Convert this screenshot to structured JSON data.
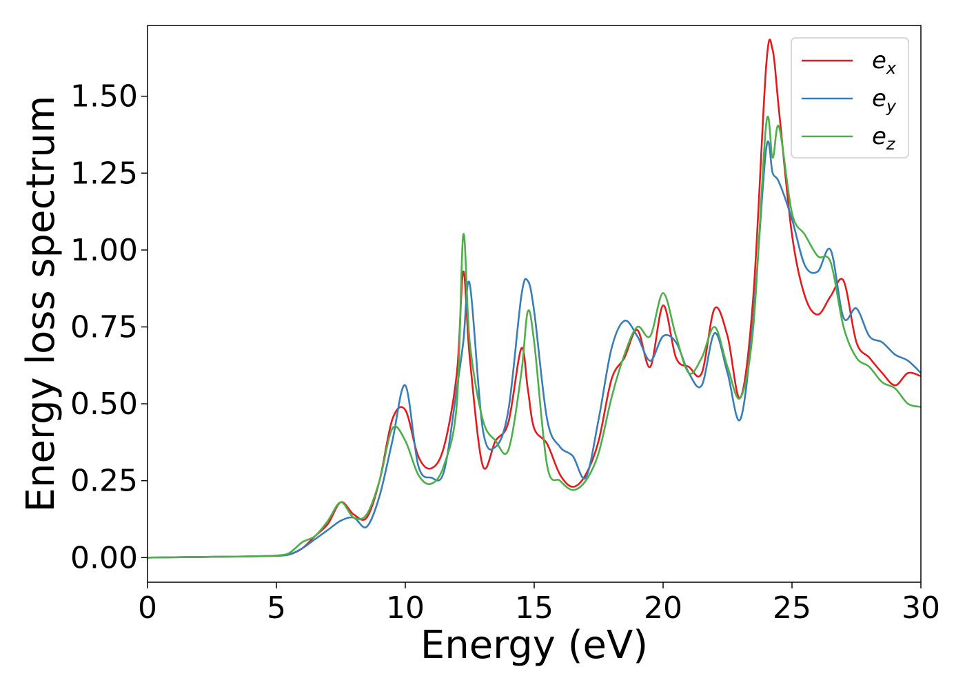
{
  "chart_data": {
    "type": "line",
    "xlabel": "Energy (eV)",
    "ylabel": "Energy loss spectrum",
    "xlim": [
      0,
      30
    ],
    "ylim": [
      -0.08,
      1.73
    ],
    "xticks": [
      "0",
      "5",
      "10",
      "15",
      "20",
      "25",
      "30"
    ],
    "yticks": [
      "0.00",
      "0.25",
      "0.50",
      "0.75",
      "1.00",
      "1.25",
      "1.50"
    ],
    "grid": false,
    "legend_position": "top-right",
    "x": [
      0,
      1,
      2,
      3,
      4,
      5,
      5.5,
      6,
      6.5,
      7,
      7.5,
      8,
      8.5,
      9,
      9.5,
      10,
      10.5,
      11,
      11.5,
      12,
      12.25,
      12.5,
      13,
      13.5,
      14,
      14.5,
      14.75,
      15,
      15.5,
      16,
      16.5,
      17,
      17.5,
      18,
      18.5,
      19,
      19.5,
      20,
      20.5,
      21,
      21.5,
      22,
      22.5,
      23,
      23.5,
      24,
      24.25,
      24.5,
      25,
      25.5,
      26,
      26.5,
      27,
      27.5,
      28,
      28.5,
      29,
      29.5,
      30
    ],
    "series": [
      {
        "name": "e",
        "subscript": "x",
        "color": "#e41a1c",
        "values": [
          0,
          0.001,
          0.002,
          0.003,
          0.004,
          0.006,
          0.01,
          0.03,
          0.07,
          0.11,
          0.18,
          0.14,
          0.13,
          0.25,
          0.45,
          0.48,
          0.33,
          0.29,
          0.36,
          0.6,
          0.93,
          0.65,
          0.3,
          0.38,
          0.44,
          0.68,
          0.55,
          0.42,
          0.37,
          0.27,
          0.23,
          0.27,
          0.38,
          0.58,
          0.65,
          0.74,
          0.62,
          0.82,
          0.65,
          0.62,
          0.6,
          0.81,
          0.72,
          0.52,
          0.85,
          1.6,
          1.65,
          1.45,
          1.05,
          0.85,
          0.79,
          0.85,
          0.9,
          0.7,
          0.65,
          0.6,
          0.56,
          0.6,
          0.59
        ]
      },
      {
        "name": "e",
        "subscript": "y",
        "color": "#377eb8",
        "values": [
          0,
          0.001,
          0.002,
          0.003,
          0.004,
          0.006,
          0.01,
          0.03,
          0.06,
          0.09,
          0.12,
          0.13,
          0.1,
          0.2,
          0.38,
          0.56,
          0.3,
          0.26,
          0.28,
          0.55,
          0.7,
          0.89,
          0.42,
          0.36,
          0.48,
          0.85,
          0.9,
          0.8,
          0.45,
          0.36,
          0.33,
          0.26,
          0.45,
          0.68,
          0.77,
          0.72,
          0.64,
          0.72,
          0.7,
          0.6,
          0.56,
          0.73,
          0.6,
          0.45,
          0.78,
          1.33,
          1.25,
          1.22,
          1.1,
          0.95,
          0.93,
          1.0,
          0.78,
          0.81,
          0.72,
          0.7,
          0.66,
          0.64,
          0.6
        ]
      },
      {
        "name": "e",
        "subscript": "z",
        "color": "#4daf4a",
        "values": [
          0,
          0.001,
          0.002,
          0.003,
          0.004,
          0.007,
          0.015,
          0.05,
          0.07,
          0.12,
          0.18,
          0.13,
          0.14,
          0.25,
          0.42,
          0.38,
          0.27,
          0.24,
          0.3,
          0.5,
          1.05,
          0.7,
          0.45,
          0.38,
          0.35,
          0.6,
          0.8,
          0.7,
          0.3,
          0.25,
          0.22,
          0.25,
          0.34,
          0.52,
          0.66,
          0.75,
          0.72,
          0.86,
          0.72,
          0.6,
          0.65,
          0.75,
          0.62,
          0.52,
          0.75,
          1.41,
          1.3,
          1.4,
          1.12,
          1.05,
          0.98,
          0.96,
          0.75,
          0.65,
          0.62,
          0.57,
          0.55,
          0.5,
          0.49
        ]
      }
    ]
  }
}
